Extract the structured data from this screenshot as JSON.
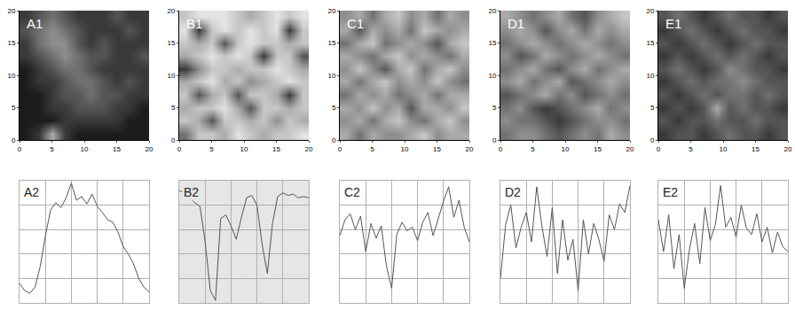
{
  "chart_data": [
    {
      "type": "heatmap",
      "label": "A1",
      "xlim": [
        0,
        20
      ],
      "ylim": [
        0,
        20
      ],
      "xticks": [
        0,
        5,
        10,
        15,
        20
      ],
      "yticks": [
        0,
        5,
        10,
        15,
        20
      ],
      "grid": false,
      "zlim": [
        0,
        9
      ],
      "x": [
        1,
        3,
        5,
        7,
        9,
        11,
        13,
        15,
        17,
        19
      ],
      "y": [
        19,
        17,
        15,
        13,
        11,
        9,
        7,
        5,
        3,
        1
      ],
      "z": [
        [
          2,
          3,
          4,
          3,
          2,
          2,
          2,
          3,
          2,
          2
        ],
        [
          3,
          4,
          5,
          4,
          3,
          2,
          2,
          2,
          3,
          2
        ],
        [
          2,
          4,
          5,
          5,
          3,
          2,
          3,
          2,
          2,
          2
        ],
        [
          2,
          3,
          4,
          5,
          4,
          3,
          3,
          2,
          2,
          3
        ],
        [
          1,
          2,
          3,
          4,
          4,
          3,
          2,
          2,
          2,
          2
        ],
        [
          1,
          2,
          2,
          3,
          4,
          4,
          3,
          2,
          3,
          2
        ],
        [
          1,
          1,
          2,
          3,
          3,
          4,
          3,
          3,
          2,
          2
        ],
        [
          1,
          1,
          2,
          2,
          3,
          3,
          3,
          2,
          2,
          1
        ],
        [
          1,
          1,
          1,
          2,
          2,
          2,
          2,
          2,
          1,
          1
        ],
        [
          1,
          2,
          6,
          2,
          1,
          1,
          1,
          1,
          1,
          1
        ]
      ]
    },
    {
      "type": "heatmap",
      "label": "B1",
      "xlim": [
        0,
        20
      ],
      "ylim": [
        0,
        20
      ],
      "xticks": [
        0,
        5,
        10,
        15,
        20
      ],
      "yticks": [
        0,
        5,
        10,
        15,
        20
      ],
      "grid": false,
      "zlim": [
        0,
        9
      ],
      "x": [
        1,
        3,
        5,
        7,
        9,
        11,
        13,
        15,
        17,
        19
      ],
      "y": [
        19,
        17,
        15,
        13,
        11,
        9,
        7,
        5,
        3,
        1
      ],
      "z": [
        [
          7,
          8,
          8,
          8,
          7,
          6,
          7,
          8,
          7,
          8
        ],
        [
          8,
          2,
          7,
          8,
          7,
          8,
          7,
          8,
          2,
          7
        ],
        [
          7,
          6,
          7,
          3,
          7,
          8,
          7,
          7,
          6,
          7
        ],
        [
          6,
          7,
          8,
          7,
          8,
          7,
          2,
          7,
          7,
          3
        ],
        [
          2,
          5,
          7,
          7,
          6,
          7,
          7,
          8,
          7,
          6
        ],
        [
          6,
          7,
          8,
          6,
          7,
          5,
          6,
          7,
          8,
          7
        ],
        [
          7,
          3,
          6,
          7,
          3,
          7,
          7,
          6,
          2,
          7
        ],
        [
          6,
          7,
          7,
          8,
          6,
          3,
          7,
          7,
          6,
          7
        ],
        [
          7,
          6,
          3,
          7,
          7,
          6,
          7,
          5,
          7,
          6
        ],
        [
          4,
          7,
          7,
          6,
          8,
          7,
          6,
          7,
          7,
          8
        ]
      ]
    },
    {
      "type": "heatmap",
      "label": "C1",
      "xlim": [
        0,
        20
      ],
      "ylim": [
        0,
        20
      ],
      "xticks": [
        0,
        5,
        10,
        15,
        20
      ],
      "yticks": [
        0,
        5,
        10,
        15,
        20
      ],
      "grid": false,
      "zlim": [
        0,
        9
      ],
      "x": [
        1,
        3,
        5,
        7,
        9,
        11,
        13,
        15,
        17,
        19
      ],
      "y": [
        19,
        17,
        15,
        13,
        11,
        9,
        7,
        5,
        3,
        1
      ],
      "z": [
        [
          5,
          6,
          4,
          6,
          7,
          5,
          6,
          4,
          6,
          5
        ],
        [
          6,
          3,
          6,
          5,
          6,
          4,
          7,
          6,
          5,
          6
        ],
        [
          4,
          6,
          7,
          4,
          5,
          6,
          5,
          3,
          6,
          7
        ],
        [
          6,
          5,
          4,
          6,
          7,
          5,
          6,
          5,
          4,
          6
        ],
        [
          5,
          7,
          5,
          3,
          6,
          7,
          4,
          6,
          7,
          5
        ],
        [
          6,
          4,
          6,
          7,
          5,
          6,
          5,
          7,
          5,
          4
        ],
        [
          4,
          6,
          5,
          6,
          4,
          5,
          6,
          4,
          6,
          6
        ],
        [
          6,
          5,
          7,
          5,
          6,
          3,
          6,
          6,
          5,
          7
        ],
        [
          5,
          6,
          4,
          6,
          7,
          5,
          4,
          6,
          7,
          5
        ],
        [
          6,
          4,
          6,
          5,
          5,
          6,
          7,
          5,
          6,
          6
        ]
      ]
    },
    {
      "type": "heatmap",
      "label": "D1",
      "xlim": [
        0,
        20
      ],
      "ylim": [
        0,
        20
      ],
      "xticks": [
        0,
        5,
        10,
        15,
        20
      ],
      "yticks": [
        0,
        5,
        10,
        15,
        20
      ],
      "grid": false,
      "zlim": [
        0,
        9
      ],
      "x": [
        1,
        3,
        5,
        7,
        9,
        11,
        13,
        15,
        17,
        19
      ],
      "y": [
        19,
        17,
        15,
        13,
        11,
        9,
        7,
        5,
        3,
        1
      ],
      "z": [
        [
          6,
          5,
          4,
          5,
          6,
          4,
          3,
          5,
          6,
          7
        ],
        [
          5,
          6,
          5,
          3,
          5,
          6,
          4,
          6,
          5,
          6
        ],
        [
          4,
          5,
          6,
          5,
          4,
          5,
          6,
          5,
          4,
          5
        ],
        [
          5,
          3,
          4,
          6,
          5,
          4,
          5,
          6,
          5,
          4
        ],
        [
          4,
          5,
          6,
          4,
          3,
          5,
          6,
          4,
          5,
          6
        ],
        [
          5,
          6,
          4,
          5,
          6,
          3,
          4,
          5,
          6,
          5
        ],
        [
          3,
          4,
          5,
          6,
          4,
          5,
          3,
          4,
          5,
          4
        ],
        [
          4,
          5,
          3,
          2,
          3,
          4,
          5,
          6,
          4,
          5
        ],
        [
          5,
          4,
          4,
          3,
          2,
          3,
          4,
          5,
          5,
          4
        ],
        [
          4,
          5,
          5,
          4,
          3,
          4,
          5,
          4,
          6,
          5
        ]
      ]
    },
    {
      "type": "heatmap",
      "label": "E1",
      "xlim": [
        0,
        20
      ],
      "ylim": [
        0,
        20
      ],
      "xticks": [
        0,
        5,
        10,
        15,
        20
      ],
      "yticks": [
        0,
        5,
        10,
        15,
        20
      ],
      "grid": false,
      "zlim": [
        0,
        9
      ],
      "x": [
        1,
        3,
        5,
        7,
        9,
        11,
        13,
        15,
        17,
        19
      ],
      "y": [
        19,
        17,
        15,
        13,
        11,
        9,
        7,
        5,
        3,
        1
      ],
      "z": [
        [
          3,
          4,
          3,
          2,
          3,
          4,
          3,
          3,
          2,
          3
        ],
        [
          2,
          3,
          4,
          3,
          2,
          3,
          4,
          3,
          3,
          2
        ],
        [
          3,
          2,
          3,
          4,
          3,
          2,
          3,
          4,
          3,
          3
        ],
        [
          2,
          3,
          2,
          3,
          4,
          3,
          4,
          3,
          2,
          3
        ],
        [
          3,
          4,
          3,
          2,
          3,
          5,
          4,
          3,
          3,
          2
        ],
        [
          2,
          3,
          4,
          3,
          4,
          4,
          5,
          4,
          3,
          3
        ],
        [
          3,
          2,
          3,
          4,
          3,
          4,
          4,
          3,
          4,
          3
        ],
        [
          2,
          3,
          2,
          3,
          6,
          3,
          4,
          3,
          3,
          2
        ],
        [
          3,
          2,
          3,
          3,
          4,
          3,
          3,
          4,
          3,
          3
        ],
        [
          2,
          3,
          3,
          2,
          3,
          4,
          3,
          3,
          2,
          3
        ]
      ]
    },
    {
      "type": "line",
      "label": "A2",
      "color": "#555555",
      "xlim": [
        0,
        20
      ],
      "ylim": [
        0,
        10
      ],
      "xticks": [
        0,
        4,
        8,
        12,
        16,
        20
      ],
      "yticks": [
        0,
        2,
        4,
        6,
        8,
        10
      ],
      "grid": true,
      "tick_labels": false,
      "x": [
        0,
        0.8,
        1.6,
        2.4,
        3.2,
        4,
        4.8,
        5.6,
        6.4,
        7.2,
        8,
        8.8,
        9.6,
        10.4,
        11.2,
        12,
        12.8,
        13.6,
        14.4,
        15.2,
        16,
        16.8,
        17.6,
        18.4,
        19.2,
        20
      ],
      "values": [
        1.6,
        1.0,
        0.8,
        1.3,
        3,
        5.5,
        7.6,
        8.2,
        7.8,
        8.6,
        9.8,
        8.4,
        8.7,
        8.1,
        8.9,
        7.9,
        7.4,
        6.8,
        6.6,
        5.8,
        4.6,
        4.0,
        3.2,
        2.0,
        1.3,
        0.9
      ]
    },
    {
      "type": "line",
      "label": "B2",
      "color": "#555555",
      "xlim": [
        0,
        20
      ],
      "ylim": [
        0,
        10
      ],
      "xticks": [
        0,
        4,
        8,
        12,
        16,
        20
      ],
      "yticks": [
        0,
        2,
        4,
        6,
        8,
        10
      ],
      "grid": true,
      "tick_labels": false,
      "x": [
        0,
        0.8,
        1.6,
        2.4,
        3.2,
        4,
        4.8,
        5.6,
        6.4,
        7.2,
        8,
        8.8,
        9.6,
        10.4,
        11.2,
        12,
        12.8,
        13.6,
        14.4,
        15.2,
        16,
        16.8,
        17.6,
        18.4,
        19.2,
        20
      ],
      "values": [
        9.2,
        9.0,
        8.6,
        8.2,
        7.9,
        5.0,
        1.0,
        0.2,
        6.9,
        7.2,
        6.3,
        5.2,
        7.0,
        8.6,
        8.8,
        8.0,
        4.8,
        2.4,
        6.5,
        8.7,
        9.0,
        8.8,
        8.9,
        8.6,
        8.7,
        8.6
      ]
    },
    {
      "type": "line",
      "label": "C2",
      "color": "#555555",
      "xlim": [
        0,
        20
      ],
      "ylim": [
        0,
        10
      ],
      "xticks": [
        0,
        4,
        8,
        12,
        16,
        20
      ],
      "yticks": [
        0,
        2,
        4,
        6,
        8,
        10
      ],
      "grid": true,
      "tick_labels": false,
      "x": [
        0,
        0.8,
        1.6,
        2.4,
        3.2,
        4,
        4.8,
        5.6,
        6.4,
        7.2,
        8,
        8.8,
        9.6,
        10.4,
        11.2,
        12,
        12.8,
        13.6,
        14.4,
        15.2,
        16,
        16.8,
        17.6,
        18.4,
        19.2,
        20
      ],
      "values": [
        5.5,
        6.8,
        7.3,
        6.0,
        7.1,
        4.2,
        6.5,
        5.3,
        6.3,
        3.0,
        1.2,
        5.6,
        6.6,
        5.9,
        6.2,
        5.1,
        6.6,
        7.4,
        5.5,
        6.9,
        8.3,
        9.5,
        7.0,
        8.4,
        6.2,
        5.0
      ]
    },
    {
      "type": "line",
      "label": "D2",
      "color": "#555555",
      "xlim": [
        0,
        20
      ],
      "ylim": [
        0,
        10
      ],
      "xticks": [
        0,
        4,
        8,
        12,
        16,
        20
      ],
      "yticks": [
        0,
        2,
        4,
        6,
        8,
        10
      ],
      "grid": true,
      "tick_labels": false,
      "x": [
        0,
        0.8,
        1.6,
        2.4,
        3.2,
        4,
        4.8,
        5.6,
        6.4,
        7.2,
        8,
        8.8,
        9.6,
        10.4,
        11.2,
        12,
        12.8,
        13.6,
        14.4,
        15.2,
        16,
        16.8,
        17.6,
        18.4,
        19.2,
        20
      ],
      "values": [
        2.0,
        6.4,
        8.0,
        4.5,
        6.2,
        7.4,
        5.0,
        9.5,
        6.3,
        3.8,
        7.8,
        2.4,
        6.8,
        3.5,
        5.2,
        1.0,
        6.8,
        4.0,
        6.5,
        5.2,
        3.4,
        7.2,
        6.0,
        8.1,
        7.4,
        9.6
      ]
    },
    {
      "type": "line",
      "label": "E2",
      "color": "#555555",
      "xlim": [
        0,
        20
      ],
      "ylim": [
        0,
        10
      ],
      "xticks": [
        0,
        4,
        8,
        12,
        16,
        20
      ],
      "yticks": [
        0,
        2,
        4,
        6,
        8,
        10
      ],
      "grid": true,
      "tick_labels": false,
      "x": [
        0,
        0.8,
        1.6,
        2.4,
        3.2,
        4,
        4.8,
        5.6,
        6.4,
        7.2,
        8,
        8.8,
        9.6,
        10.4,
        11.2,
        12,
        12.8,
        13.6,
        14.4,
        15.2,
        16,
        16.8,
        17.6,
        18.4,
        19.2,
        20
      ],
      "values": [
        6.8,
        4.2,
        7.2,
        2.8,
        5.6,
        1.2,
        4.4,
        6.5,
        3.2,
        7.8,
        5.1,
        6.4,
        9.6,
        6.2,
        7.0,
        5.4,
        8.0,
        6.1,
        5.6,
        7.3,
        5.0,
        6.2,
        4.1,
        5.8,
        4.6,
        4.2
      ]
    }
  ]
}
